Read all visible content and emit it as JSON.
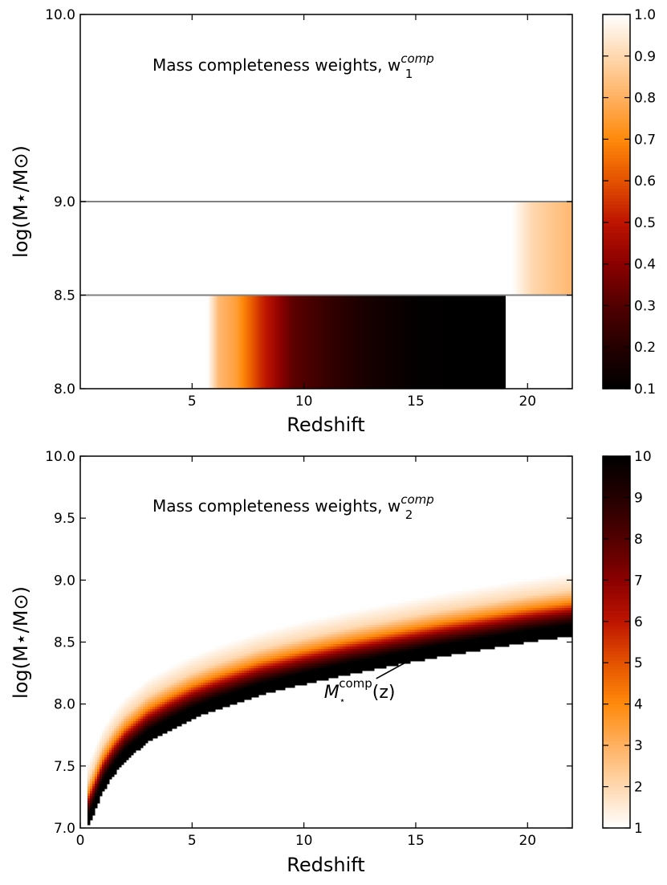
{
  "colors": {
    "cmap_stops": [
      "#ffffff",
      "#ffd8b0",
      "#ffb061",
      "#ff8a0b",
      "#e45200",
      "#bd1400",
      "#8a0000",
      "#520000",
      "#240000",
      "#000000"
    ],
    "band_line": "#808080"
  },
  "chart_data": [
    {
      "type": "heatmap",
      "title": "Mass completeness weights, w",
      "title_sub": "1",
      "title_sup": "comp",
      "xlabel": "Redshift",
      "ylabel": "log(M⋆/M⊙)",
      "xlim": [
        0,
        22
      ],
      "ylim": [
        8.0,
        10.0
      ],
      "xticks": [
        5,
        10,
        15,
        20
      ],
      "xtick_labels": [
        "5",
        "10",
        "15",
        "20"
      ],
      "yticks": [
        8.0,
        8.5,
        9.0,
        10.0
      ],
      "ytick_labels": [
        "8.0",
        "8.5",
        "9.0",
        "10.0"
      ],
      "mass_bin_edges": [
        8.5,
        9.0
      ],
      "bands": [
        {
          "mass_range": [
            8.0,
            8.5
          ],
          "z_start": 5.7,
          "z_end": 19.0,
          "weight_profile": [
            [
              5.7,
              1.0
            ],
            [
              6.2,
              0.82
            ],
            [
              7.0,
              0.75
            ],
            [
              8.0,
              0.55
            ],
            [
              9.5,
              0.32
            ],
            [
              11,
              0.24
            ],
            [
              13,
              0.16
            ],
            [
              15,
              0.11
            ],
            [
              17,
              0.1
            ],
            [
              19.0,
              0.1
            ]
          ]
        },
        {
          "mass_range": [
            8.5,
            9.0
          ],
          "z_start": 19.3,
          "z_end": 22,
          "weight_profile": [
            [
              19.3,
              1.0
            ],
            [
              20.2,
              0.9
            ],
            [
              21,
              0.86
            ],
            [
              22,
              0.82
            ]
          ]
        }
      ],
      "colorbar": {
        "range": [
          0.1,
          1.0
        ],
        "ticks": [
          "0.1",
          "0.2",
          "0.3",
          "0.4",
          "0.5",
          "0.6",
          "0.7",
          "0.8",
          "0.9",
          "1.0"
        ]
      }
    },
    {
      "type": "heatmap",
      "title": "Mass completeness weights, w",
      "title_sub": "2",
      "title_sup": "comp",
      "xlabel": "Redshift",
      "ylabel": "log(M⋆/M⊙)",
      "xlim": [
        0,
        22
      ],
      "ylim": [
        7.0,
        10.0
      ],
      "xticks": [
        0,
        5,
        10,
        15,
        20
      ],
      "xtick_labels": [
        "0",
        "5",
        "10",
        "15",
        "20"
      ],
      "yticks": [
        7.0,
        7.5,
        8.0,
        8.5,
        9.0,
        9.5,
        10.0
      ],
      "ytick_labels": [
        "7.0",
        "7.5",
        "8.0",
        "8.5",
        "9.0",
        "9.5",
        "10.0"
      ],
      "completeness_curve": {
        "z": [
          0.3,
          0.5,
          1,
          1.5,
          2,
          3,
          4,
          5,
          6,
          7,
          8,
          10,
          12,
          14,
          16,
          18,
          20,
          22
        ],
        "logM": [
          7.0,
          7.08,
          7.3,
          7.44,
          7.55,
          7.7,
          7.8,
          7.89,
          7.96,
          8.02,
          8.08,
          8.17,
          8.25,
          8.32,
          8.39,
          8.45,
          8.51,
          8.56
        ]
      },
      "weight_profile_above_curve": [
        [
          0.0,
          10
        ],
        [
          0.08,
          10
        ],
        [
          0.18,
          7
        ],
        [
          0.26,
          4
        ],
        [
          0.36,
          2
        ],
        [
          0.5,
          1
        ]
      ],
      "annotation": {
        "text": "M",
        "sup": "comp",
        "tail": "(z)",
        "points_to": [
          14.8,
          8.36
        ],
        "text_at": [
          10.9,
          8.05
        ]
      },
      "colorbar": {
        "range": [
          1,
          10
        ],
        "ticks": [
          "1",
          "2",
          "3",
          "4",
          "5",
          "6",
          "7",
          "8",
          "9",
          "10"
        ]
      }
    }
  ]
}
